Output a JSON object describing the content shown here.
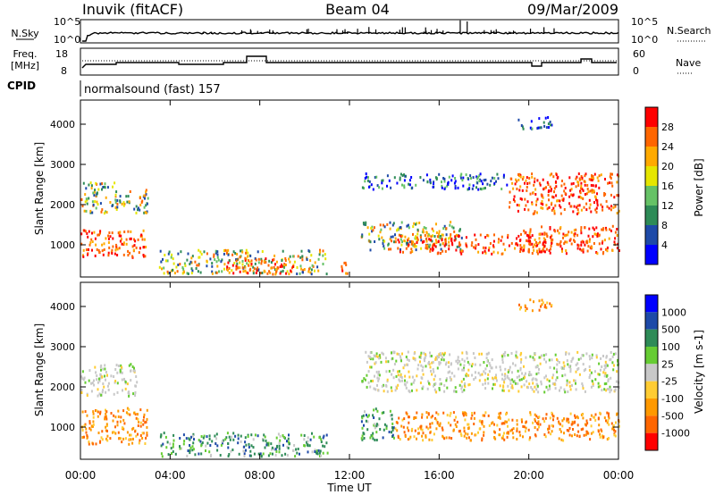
{
  "header": {
    "station": "Inuvik (fitACF)",
    "beam": "Beam 04",
    "date": "09/Mar/2009"
  },
  "panel_nsky": {
    "left_label": "N.Sky",
    "left_ticks": [
      "10^5",
      "10^0"
    ],
    "right_label": "N.Search",
    "right_ticks": [
      "10^5",
      "10^0"
    ]
  },
  "panel_freq": {
    "left_label_1": "Freq.",
    "left_label_2": "[MHz]",
    "left_ticks": [
      "18",
      "8"
    ],
    "right_label": "Nave",
    "right_ticks": [
      "60",
      "0"
    ],
    "cpid_label": "CPID",
    "cpid_value": "normalsound (fast) 157"
  },
  "colors": {
    "power_scale": [
      "#0000ff",
      "#1e4aa8",
      "#2e8b57",
      "#66c266",
      "#e6e600",
      "#ffaa00",
      "#ff6600",
      "#ff0000"
    ],
    "velocity_scale": [
      "#ff0000",
      "#ff6600",
      "#ff9900",
      "#ffcc33",
      "#c8c8c8",
      "#66cc33",
      "#2e8b57",
      "#1e4aa8",
      "#0000ff"
    ]
  },
  "chart_data": [
    {
      "type": "heatmap",
      "name": "power",
      "ylabel": "Slant Range [km]",
      "yticks": [
        "4000",
        "3000",
        "2000",
        "1000"
      ],
      "colorbar_label": "Power [dB]",
      "colorbar_ticks": [
        "28",
        "24",
        "20",
        "16",
        "12",
        "8",
        "4"
      ],
      "colorbar_range": [
        0,
        32
      ],
      "ylim": [
        200,
        4600
      ],
      "xlim": [
        0,
        24
      ],
      "bands": [
        {
          "x": [
            0,
            3.0
          ],
          "y": [
            700,
            1400
          ],
          "level": "strong"
        },
        {
          "x": [
            0,
            1.6
          ],
          "y": [
            1800,
            2600
          ],
          "level": "medium"
        },
        {
          "x": [
            1.6,
            3.0
          ],
          "y": [
            1800,
            2400
          ],
          "level": "medium"
        },
        {
          "x": [
            3.5,
            11.0
          ],
          "y": [
            300,
            900
          ],
          "level": "medium"
        },
        {
          "x": [
            6.5,
            9.5
          ],
          "y": [
            300,
            700
          ],
          "level": "strong"
        },
        {
          "x": [
            11.5,
            12.0
          ],
          "y": [
            300,
            600
          ],
          "level": "strong"
        },
        {
          "x": [
            12.5,
            17.0
          ],
          "y": [
            900,
            1600
          ],
          "level": "medium"
        },
        {
          "x": [
            14.0,
            21.0
          ],
          "y": [
            800,
            1300
          ],
          "level": "strong"
        },
        {
          "x": [
            19.5,
            24.0
          ],
          "y": [
            800,
            1500
          ],
          "level": "strong"
        },
        {
          "x": [
            12.5,
            19.0
          ],
          "y": [
            2400,
            2800
          ],
          "level": "weak"
        },
        {
          "x": [
            19.0,
            24.0
          ],
          "y": [
            1800,
            2800
          ],
          "level": "strong"
        },
        {
          "x": [
            19.5,
            21.0
          ],
          "y": [
            3900,
            4200
          ],
          "level": "weak"
        }
      ]
    },
    {
      "type": "heatmap",
      "name": "velocity",
      "ylabel": "Slant Range [km]",
      "yticks": [
        "4000",
        "3000",
        "2000",
        "1000"
      ],
      "colorbar_label": "Velocity [m s-1]",
      "colorbar_ticks": [
        "1000",
        "500",
        "100",
        "25",
        "-25",
        "-100",
        "-500",
        "-1000"
      ],
      "xlabel": "Time UT",
      "xticks": [
        "00:00",
        "04:00",
        "08:00",
        "12:00",
        "16:00",
        "20:00",
        "00:00"
      ],
      "ylim": [
        200,
        4600
      ],
      "xlim": [
        0,
        24
      ],
      "bands": [
        {
          "x": [
            0,
            3.0
          ],
          "y": [
            600,
            1500
          ],
          "level": "neg"
        },
        {
          "x": [
            0,
            2.5
          ],
          "y": [
            1800,
            2600
          ],
          "level": "zero"
        },
        {
          "x": [
            3.5,
            11.0
          ],
          "y": [
            300,
            900
          ],
          "level": "pos"
        },
        {
          "x": [
            12.5,
            14.0
          ],
          "y": [
            700,
            1500
          ],
          "level": "pos"
        },
        {
          "x": [
            14.0,
            24.0
          ],
          "y": [
            700,
            1400
          ],
          "level": "neg"
        },
        {
          "x": [
            12.5,
            24.0
          ],
          "y": [
            1900,
            2900
          ],
          "level": "zero"
        },
        {
          "x": [
            19.5,
            21.0
          ],
          "y": [
            3900,
            4200
          ],
          "level": "neg"
        }
      ]
    }
  ]
}
